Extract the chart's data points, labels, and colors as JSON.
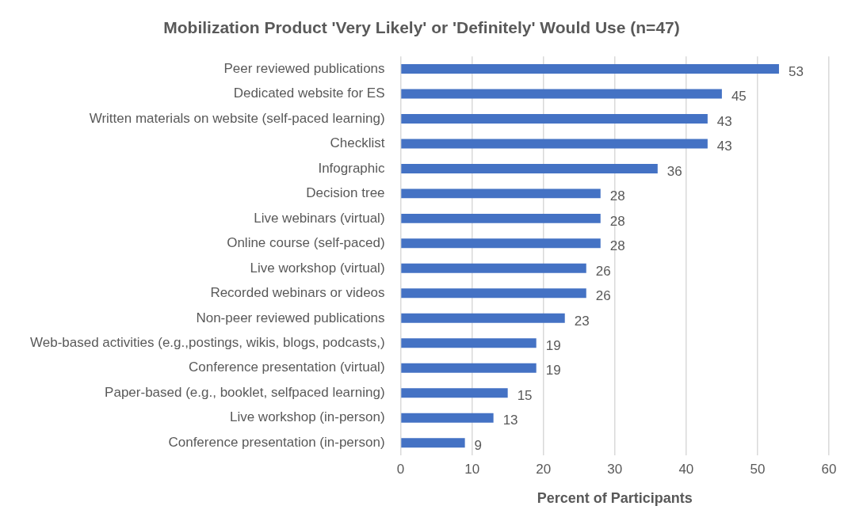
{
  "chart_data": {
    "type": "bar",
    "orientation": "horizontal",
    "title": "Mobilization Product 'Very Likely' or 'Definitely' Would Use (n=47)",
    "xlabel": "Percent of Participants",
    "categories": [
      "Peer reviewed publications",
      "Dedicated website for ES",
      "Written materials on website (self-paced learning)",
      "Checklist",
      "Infographic",
      "Decision tree",
      "Live webinars (virtual)",
      "Online course (self-paced)",
      "Live workshop (virtual)",
      "Recorded webinars or videos",
      "Non-peer reviewed publications",
      "Web-based activities (e.g.,postings, wikis, blogs, podcasts,)",
      "Conference presentation (virtual)",
      "Paper-based (e.g., booklet, selfpaced learning)",
      "Live workshop (in-person)",
      "Conference presentation (in-person)"
    ],
    "values": [
      53,
      45,
      43,
      43,
      36,
      28,
      28,
      28,
      26,
      26,
      23,
      19,
      19,
      15,
      13,
      9
    ],
    "color": "#4472c4",
    "xlim": [
      0,
      60
    ],
    "xticks": [
      0,
      10,
      20,
      30,
      40,
      50,
      60
    ],
    "grid": "x",
    "legend": false,
    "data_labels": true
  }
}
